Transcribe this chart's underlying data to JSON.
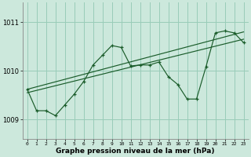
{
  "xlabel": "Graphe pression niveau de la mer (hPa)",
  "background_color": "#cce8dc",
  "grid_color": "#99ccb8",
  "line_color": "#1a5c2a",
  "x_ticks": [
    0,
    1,
    2,
    3,
    4,
    5,
    6,
    7,
    8,
    9,
    10,
    11,
    12,
    13,
    14,
    15,
    16,
    17,
    18,
    19,
    20,
    21,
    22,
    23
  ],
  "ylim": [
    1008.6,
    1011.4
  ],
  "y_ticks": [
    1009,
    1010,
    1011
  ],
  "main_x": [
    0,
    1,
    2,
    3,
    4,
    5,
    6,
    7,
    8,
    9,
    10,
    11,
    12,
    13,
    14,
    15,
    16,
    17,
    18,
    19,
    20,
    21,
    22,
    23
  ],
  "main_y": [
    1009.62,
    1009.18,
    1009.18,
    1009.08,
    1009.3,
    1009.52,
    1009.78,
    1010.12,
    1010.32,
    1010.52,
    1010.48,
    1010.1,
    1010.12,
    1010.12,
    1010.18,
    1009.88,
    1009.72,
    1009.42,
    1009.42,
    1010.08,
    1010.78,
    1010.82,
    1010.78,
    1010.58
  ],
  "trend1_x": [
    0,
    23
  ],
  "trend1_y": [
    1009.55,
    1010.65
  ],
  "trend2_x": [
    0,
    23
  ],
  "trend2_y": [
    1009.62,
    1010.8
  ],
  "figwidth": 3.2,
  "figheight": 2.0,
  "dpi": 100
}
